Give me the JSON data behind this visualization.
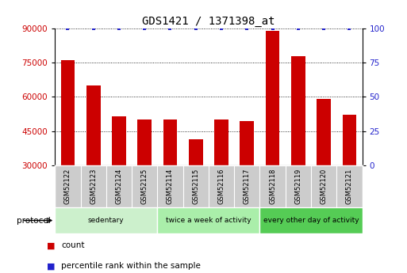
{
  "title": "GDS1421 / 1371398_at",
  "samples": [
    "GSM52122",
    "GSM52123",
    "GSM52124",
    "GSM52125",
    "GSM52114",
    "GSM52115",
    "GSM52116",
    "GSM52117",
    "GSM52118",
    "GSM52119",
    "GSM52120",
    "GSM52121"
  ],
  "counts": [
    76000,
    65000,
    51500,
    50000,
    50000,
    41500,
    50000,
    49500,
    89000,
    78000,
    59000,
    52000
  ],
  "percentile_ranks": [
    100,
    100,
    100,
    100,
    100,
    100,
    100,
    100,
    100,
    100,
    100,
    100
  ],
  "groups": [
    {
      "label": "sedentary",
      "start": 0,
      "end": 4,
      "color": "#ccf0cc"
    },
    {
      "label": "twice a week of activity",
      "start": 4,
      "end": 8,
      "color": "#aaeeaa"
    },
    {
      "label": "every other day of activity",
      "start": 8,
      "end": 12,
      "color": "#55cc55"
    }
  ],
  "ylim_left": [
    30000,
    90000
  ],
  "yticks_left": [
    30000,
    45000,
    60000,
    75000,
    90000
  ],
  "ylim_right": [
    0,
    100
  ],
  "yticks_right": [
    0,
    25,
    50,
    75,
    100
  ],
  "bar_color": "#cc0000",
  "dot_color": "#2222cc",
  "background_color": "#ffffff",
  "xlabel_color": "#cc0000",
  "ylabel_right_color": "#2222cc",
  "bar_width": 0.55,
  "label_count": "count",
  "label_percentile": "percentile rank within the sample",
  "cell_bg": "#cccccc",
  "cell_border": "#ffffff"
}
